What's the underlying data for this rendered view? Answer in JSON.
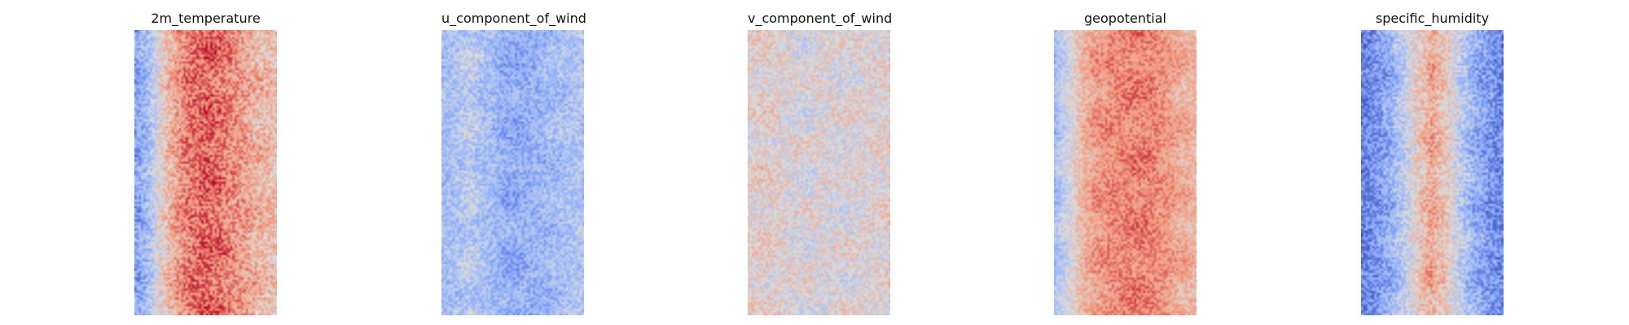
{
  "chart_data": [
    {
      "type": "heatmap",
      "title": "2m_temperature",
      "grid": false,
      "colormap": "coolwarm",
      "value_range": [
        -1,
        1
      ],
      "approx_grid": [
        64,
        128
      ],
      "column_profile": [
        -0.55,
        -0.3,
        0.15,
        0.45,
        0.62,
        0.68,
        0.62,
        0.5,
        0.38,
        0.28,
        0.22
      ],
      "noise_level": 0.3
    },
    {
      "type": "heatmap",
      "title": "u_component_of_wind",
      "grid": false,
      "colormap": "coolwarm",
      "value_range": [
        -1,
        1
      ],
      "approx_grid": [
        64,
        128
      ],
      "column_profile": [
        -0.35,
        -0.3,
        -0.2,
        -0.32,
        -0.42,
        -0.48,
        -0.45,
        -0.4,
        -0.35,
        -0.3,
        -0.28
      ],
      "noise_level": 0.25
    },
    {
      "type": "heatmap",
      "title": "v_component_of_wind",
      "grid": false,
      "colormap": "coolwarm",
      "value_range": [
        -1,
        1
      ],
      "approx_grid": [
        64,
        128
      ],
      "column_profile": [
        0.05,
        0.08,
        0.05,
        0.0,
        0.0,
        0.02,
        0.0,
        0.0,
        0.02,
        0.04,
        0.06
      ],
      "noise_level": 0.28
    },
    {
      "type": "heatmap",
      "title": "geopotential",
      "grid": false,
      "colormap": "coolwarm",
      "value_range": [
        -1,
        1
      ],
      "approx_grid": [
        64,
        128
      ],
      "column_profile": [
        -0.35,
        -0.05,
        0.3,
        0.45,
        0.52,
        0.55,
        0.58,
        0.55,
        0.45,
        0.35,
        0.3
      ],
      "noise_level": 0.22
    },
    {
      "type": "heatmap",
      "title": "specific_humidity",
      "grid": false,
      "colormap": "coolwarm",
      "value_range": [
        -1,
        1
      ],
      "approx_grid": [
        64,
        128
      ],
      "column_profile": [
        -0.72,
        -0.62,
        -0.45,
        -0.2,
        0.15,
        0.38,
        0.15,
        -0.2,
        -0.45,
        -0.6,
        -0.68
      ],
      "noise_level": 0.28
    }
  ]
}
